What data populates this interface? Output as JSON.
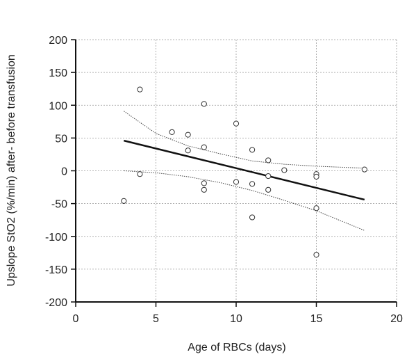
{
  "chart_data": {
    "type": "scatter",
    "xlabel": "Age of RBCs (days)",
    "ylabel": "Upslope StO2 (%/min) after- before transfusion",
    "xlim": [
      0,
      20
    ],
    "ylim": [
      -200,
      200
    ],
    "x_ticks": [
      0,
      5,
      10,
      15,
      20
    ],
    "y_ticks": [
      -200,
      -150,
      -100,
      -50,
      0,
      50,
      100,
      150,
      200
    ],
    "grid": true,
    "legend": "none",
    "colors": {
      "points": "#333333",
      "fit": "#111111",
      "ci": "#444444",
      "grid": "#999999",
      "axis": "#111111"
    },
    "points": [
      {
        "x": 3,
        "y": -46
      },
      {
        "x": 4,
        "y": 124
      },
      {
        "x": 4,
        "y": -5
      },
      {
        "x": 6,
        "y": 59
      },
      {
        "x": 7,
        "y": 55
      },
      {
        "x": 7,
        "y": 31
      },
      {
        "x": 8,
        "y": 102
      },
      {
        "x": 8,
        "y": 36
      },
      {
        "x": 8,
        "y": -19
      },
      {
        "x": 8,
        "y": -29
      },
      {
        "x": 10,
        "y": 72
      },
      {
        "x": 10,
        "y": -17
      },
      {
        "x": 11,
        "y": 32
      },
      {
        "x": 11,
        "y": -20
      },
      {
        "x": 11,
        "y": -71
      },
      {
        "x": 12,
        "y": 16
      },
      {
        "x": 12,
        "y": -8
      },
      {
        "x": 12,
        "y": -29
      },
      {
        "x": 13,
        "y": 1
      },
      {
        "x": 15,
        "y": -5
      },
      {
        "x": 15,
        "y": -9
      },
      {
        "x": 15,
        "y": -57
      },
      {
        "x": 15,
        "y": -128
      },
      {
        "x": 18,
        "y": 2
      }
    ],
    "regression_line": {
      "x": [
        3,
        18
      ],
      "y": [
        46,
        -44
      ]
    },
    "confidence_upper": {
      "x": [
        3,
        5,
        7,
        9,
        11,
        13,
        15,
        18
      ],
      "y": [
        91,
        57,
        38,
        26,
        15,
        10,
        7,
        4
      ]
    },
    "confidence_lower": {
      "x": [
        3,
        5,
        7,
        9,
        11,
        13,
        15,
        18
      ],
      "y": [
        0,
        -3,
        -9,
        -18,
        -30,
        -45,
        -61,
        -91
      ]
    }
  }
}
